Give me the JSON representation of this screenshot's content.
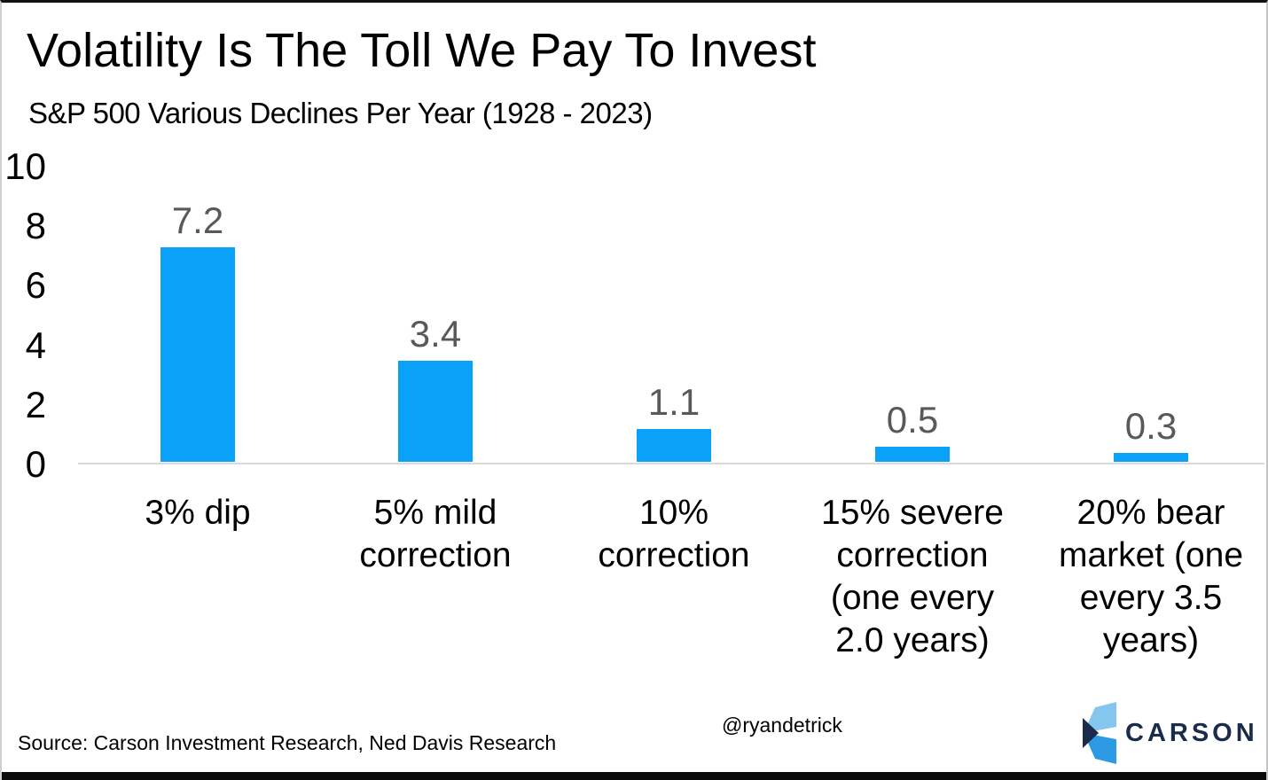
{
  "header": {
    "title": "Volatility Is The Toll We Pay To Invest",
    "subtitle": "S&P 500 Various Declines Per Year (1928 - 2023)"
  },
  "chart_data": {
    "type": "bar",
    "title": "Volatility Is The Toll We Pay To Invest",
    "subtitle": "S&P 500 Various Declines Per Year (1928 - 2023)",
    "categories": [
      "3% dip",
      "5% mild correction",
      "10% correction",
      "15% severe correction (one every 2.0 years)",
      "20% bear market (one every 3.5 years)"
    ],
    "values": [
      7.2,
      3.4,
      1.1,
      0.5,
      0.3
    ],
    "ylim": [
      0,
      10
    ],
    "yticks": [
      0,
      2,
      4,
      6,
      8,
      10
    ],
    "grid": false,
    "legend": false,
    "bar_color": "#0aa1f8",
    "value_label_color": "#595959",
    "baseline_color": "#d9d9d9",
    "bars": [
      {
        "category_display": "3% dip",
        "value": 7.2,
        "value_label": "7.2"
      },
      {
        "category_display": "5% mild\ncorrection",
        "value": 3.4,
        "value_label": "3.4"
      },
      {
        "category_display": "10%\ncorrection",
        "value": 1.1,
        "value_label": "1.1"
      },
      {
        "category_display": "15% severe\ncorrection\n(one every\n2.0 years)",
        "value": 0.5,
        "value_label": "0.5"
      },
      {
        "category_display": "20% bear\nmarket (one\nevery 3.5\nyears)",
        "value": 0.3,
        "value_label": "0.3"
      }
    ]
  },
  "yaxis": {
    "tick_labels": [
      "10",
      "8",
      "6",
      "4",
      "2",
      "0"
    ]
  },
  "footer": {
    "source": "Source: Carson Investment Research, Ned Davis Research",
    "handle": "@ryandetrick",
    "brand": {
      "name": "CARSON",
      "navy": "#1b2b4a",
      "light_blue": "#85c6ef",
      "mid_blue": "#2d9be4"
    }
  }
}
